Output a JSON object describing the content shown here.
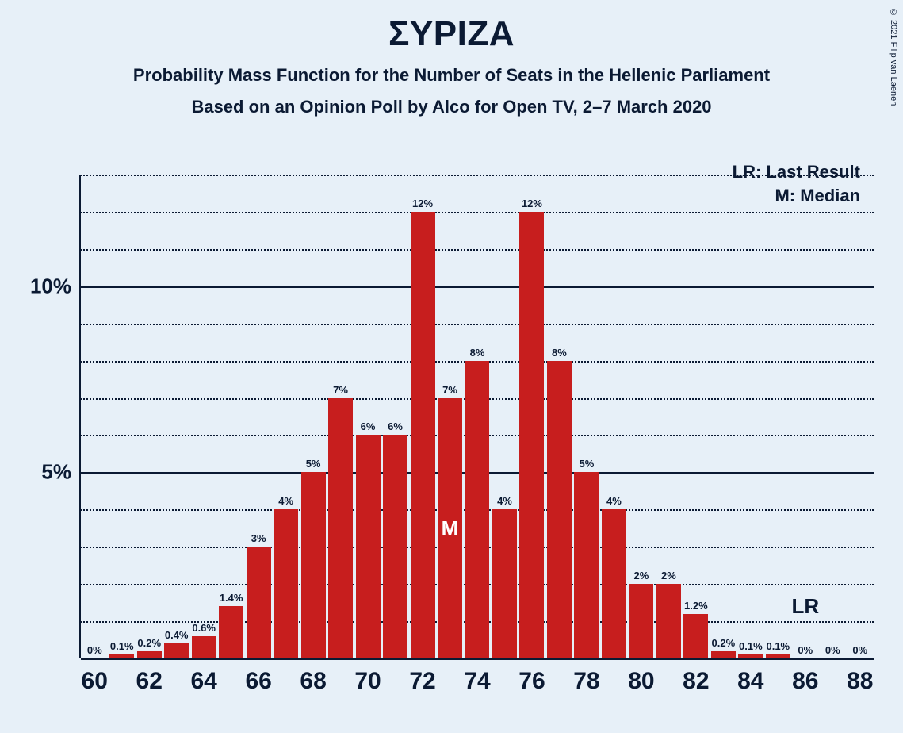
{
  "copyright": "© 2021 Filip van Laenen",
  "title": "ΣΥΡΙΖΑ",
  "subtitle1": "Probability Mass Function for the Number of Seats in the Hellenic Parliament",
  "subtitle2": "Based on an Opinion Poll by Alco for Open TV, 2–7 March 2020",
  "legend": {
    "lr": "LR: Last Result",
    "m": "M: Median"
  },
  "chart": {
    "type": "bar",
    "bar_color": "#c71e1e",
    "background_color": "#e7f0f8",
    "text_color": "#0b1a33",
    "grid_major_color": "#0b1a33",
    "grid_minor_color": "#0b1a33",
    "font_family": "Segoe UI, Helvetica Neue, Arial, sans-serif",
    "title_fontsize": 44,
    "subtitle_fontsize": 22,
    "tick_fontsize_major": 30,
    "barlabel_fontsize": 13,
    "bar_width": 0.9,
    "ylim": [
      0,
      13
    ],
    "y_major_ticks": [
      0,
      5,
      10
    ],
    "y_minor_step": 1,
    "x_range": [
      60,
      88
    ],
    "x_major_step": 2,
    "bars": [
      {
        "x": 60,
        "value": 0,
        "label": "0%"
      },
      {
        "x": 61,
        "value": 0.1,
        "label": "0.1%"
      },
      {
        "x": 62,
        "value": 0.2,
        "label": "0.2%"
      },
      {
        "x": 63,
        "value": 0.4,
        "label": "0.4%"
      },
      {
        "x": 64,
        "value": 0.6,
        "label": "0.6%"
      },
      {
        "x": 65,
        "value": 1.4,
        "label": "1.4%"
      },
      {
        "x": 66,
        "value": 3,
        "label": "3%"
      },
      {
        "x": 67,
        "value": 4,
        "label": "4%"
      },
      {
        "x": 68,
        "value": 5,
        "label": "5%"
      },
      {
        "x": 69,
        "value": 7,
        "label": "7%"
      },
      {
        "x": 70,
        "value": 6,
        "label": "6%"
      },
      {
        "x": 71,
        "value": 6,
        "label": "6%"
      },
      {
        "x": 72,
        "value": 12,
        "label": "12%"
      },
      {
        "x": 73,
        "value": 7,
        "label": "7%"
      },
      {
        "x": 74,
        "value": 8,
        "label": "8%"
      },
      {
        "x": 75,
        "value": 4,
        "label": "4%"
      },
      {
        "x": 76,
        "value": 12,
        "label": "12%"
      },
      {
        "x": 77,
        "value": 8,
        "label": "8%"
      },
      {
        "x": 78,
        "value": 5,
        "label": "5%"
      },
      {
        "x": 79,
        "value": 4,
        "label": "4%"
      },
      {
        "x": 80,
        "value": 2,
        "label": "2%"
      },
      {
        "x": 81,
        "value": 2,
        "label": "2%"
      },
      {
        "x": 82,
        "value": 1.2,
        "label": "1.2%"
      },
      {
        "x": 83,
        "value": 0.2,
        "label": "0.2%"
      },
      {
        "x": 84,
        "value": 0.1,
        "label": "0.1%"
      },
      {
        "x": 85,
        "value": 0.1,
        "label": "0.1%"
      },
      {
        "x": 86,
        "value": 0,
        "label": "0%"
      },
      {
        "x": 87,
        "value": 0,
        "label": "0%"
      },
      {
        "x": 88,
        "value": 0,
        "label": "0%"
      }
    ],
    "median_x": 73,
    "median_label": "M",
    "lr_x": 86,
    "lr_label": "LR"
  }
}
